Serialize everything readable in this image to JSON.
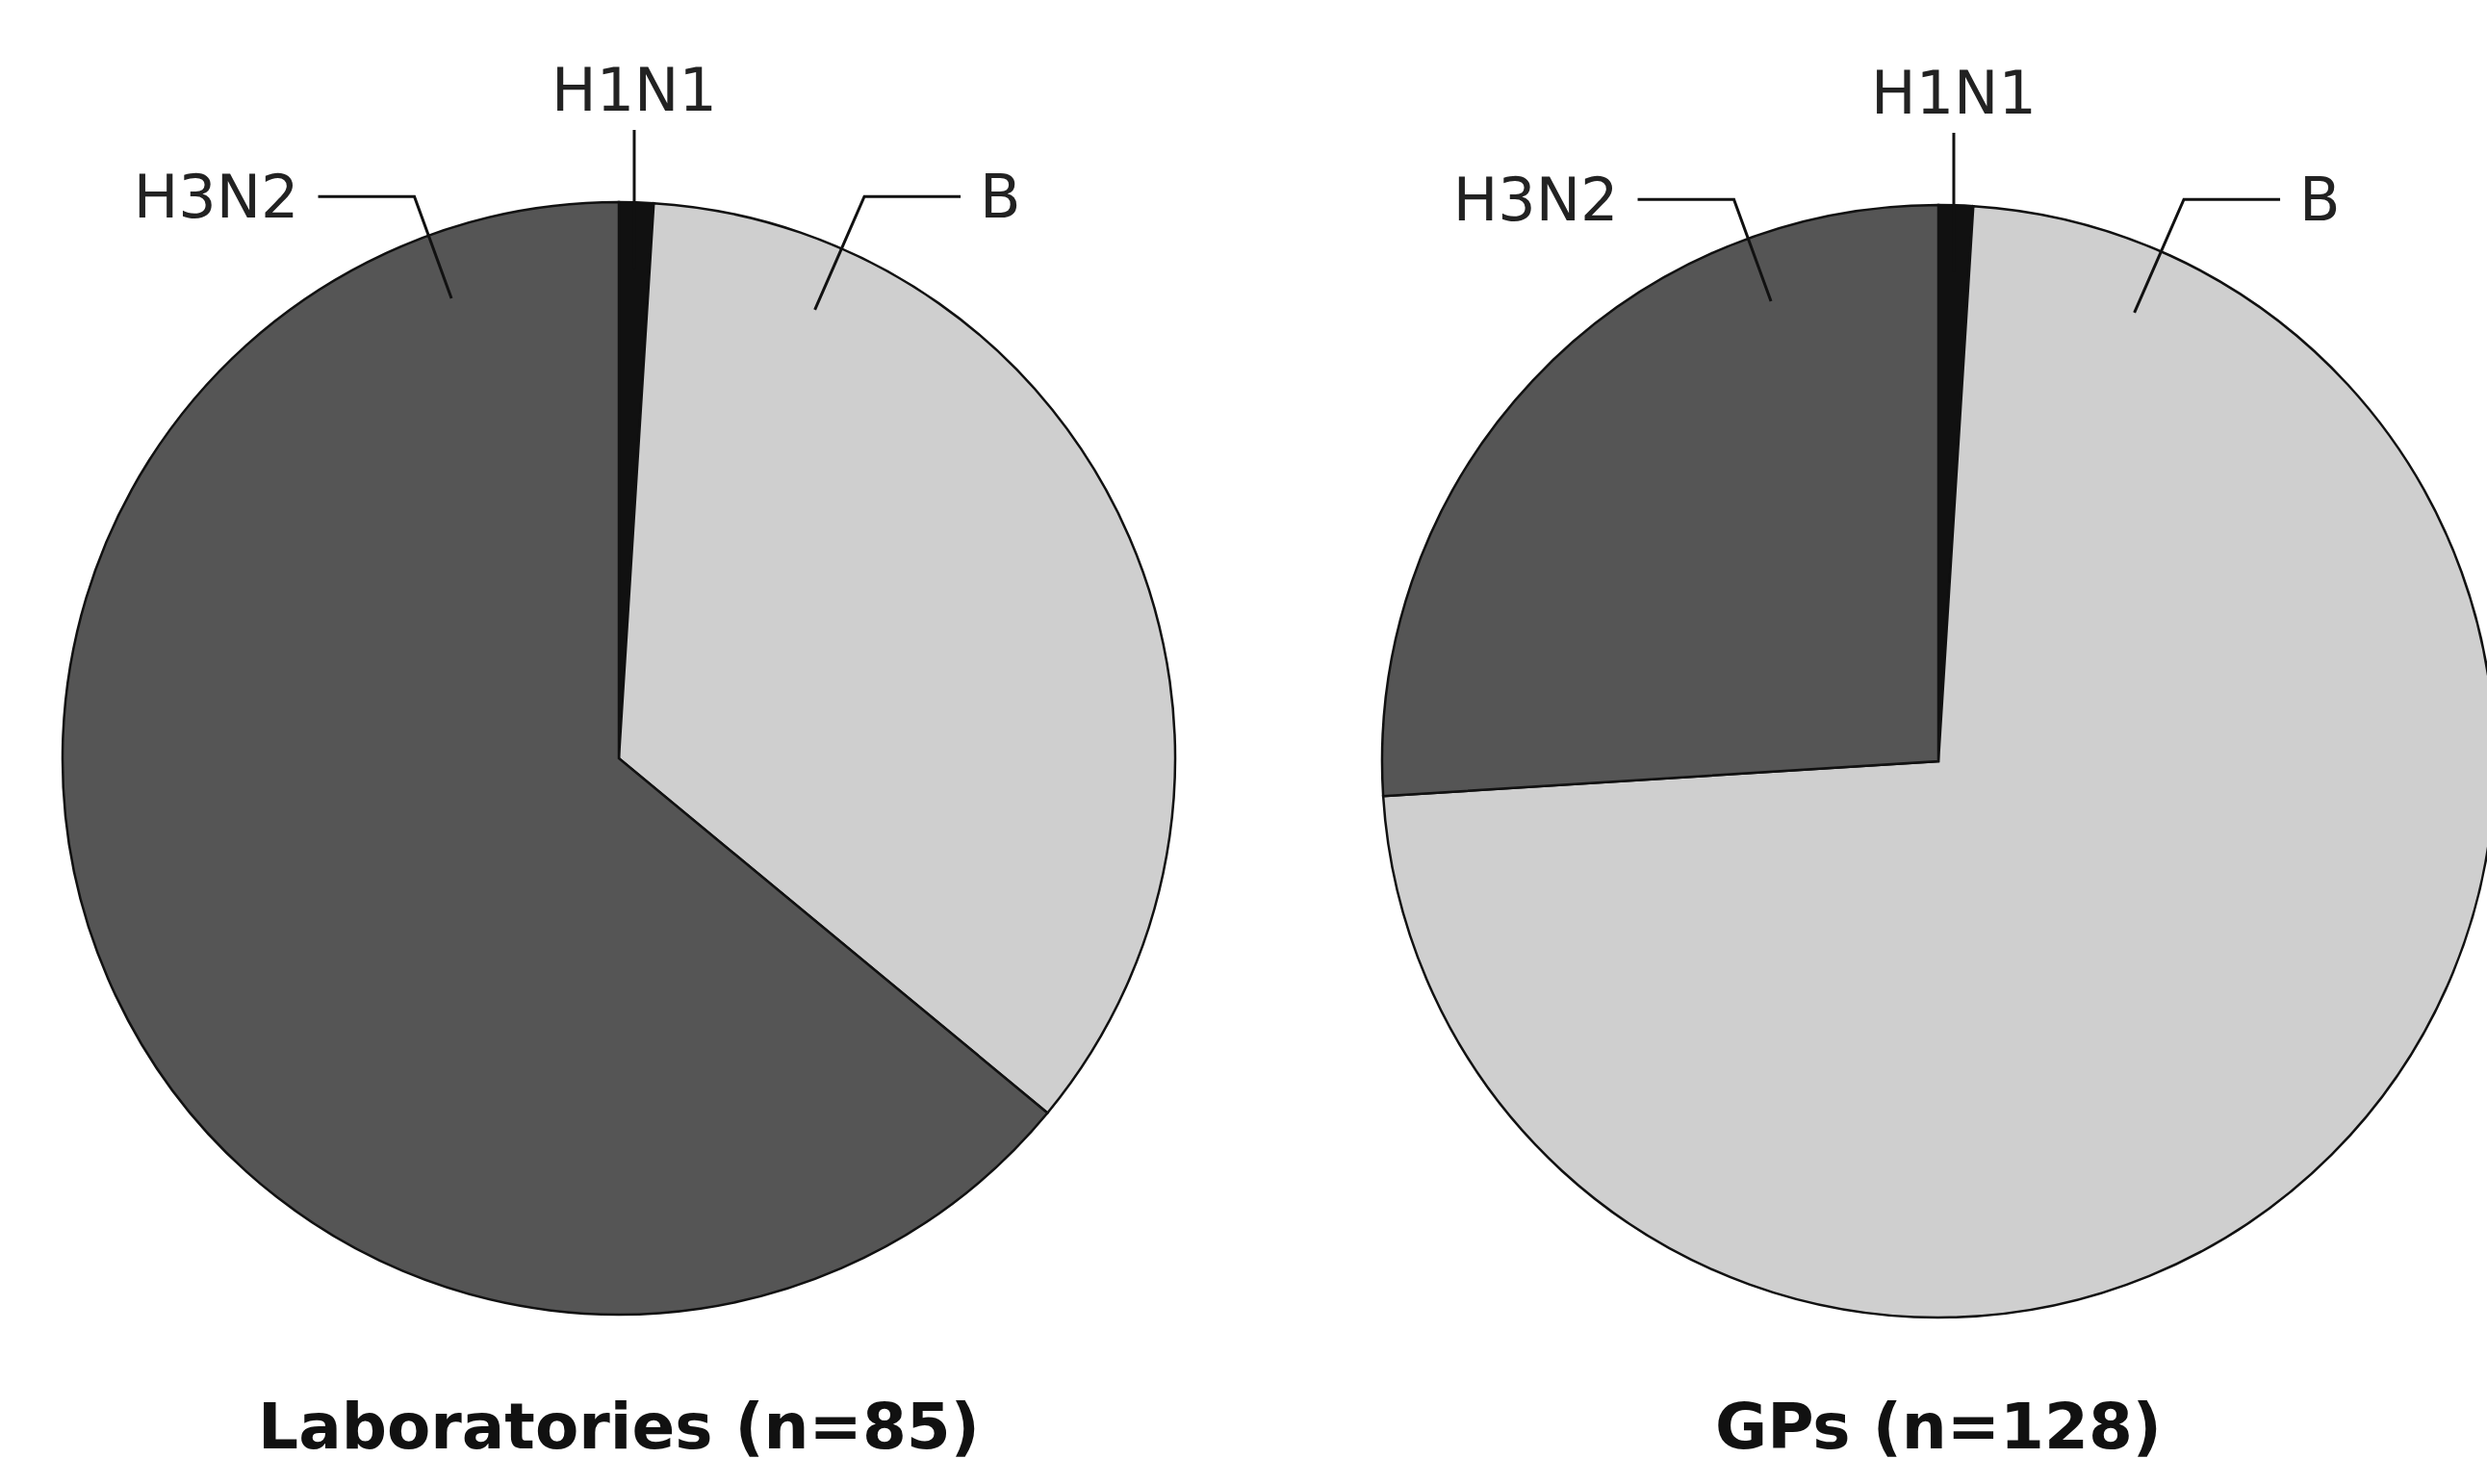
{
  "chart_data": [
    {
      "type": "pie",
      "title": "Laboratories (n=85)",
      "categories": [
        "H1N1",
        "B",
        "H3N2"
      ],
      "values": [
        1,
        35,
        64
      ],
      "colors": [
        "#111111",
        "#cfcfcf",
        "#555555"
      ]
    },
    {
      "type": "pie",
      "title": "GPs (n=128)",
      "categories": [
        "H1N1",
        "B",
        "H3N2"
      ],
      "values": [
        1,
        73,
        26
      ],
      "colors": [
        "#111111",
        "#cfcfcf",
        "#555555"
      ]
    }
  ]
}
